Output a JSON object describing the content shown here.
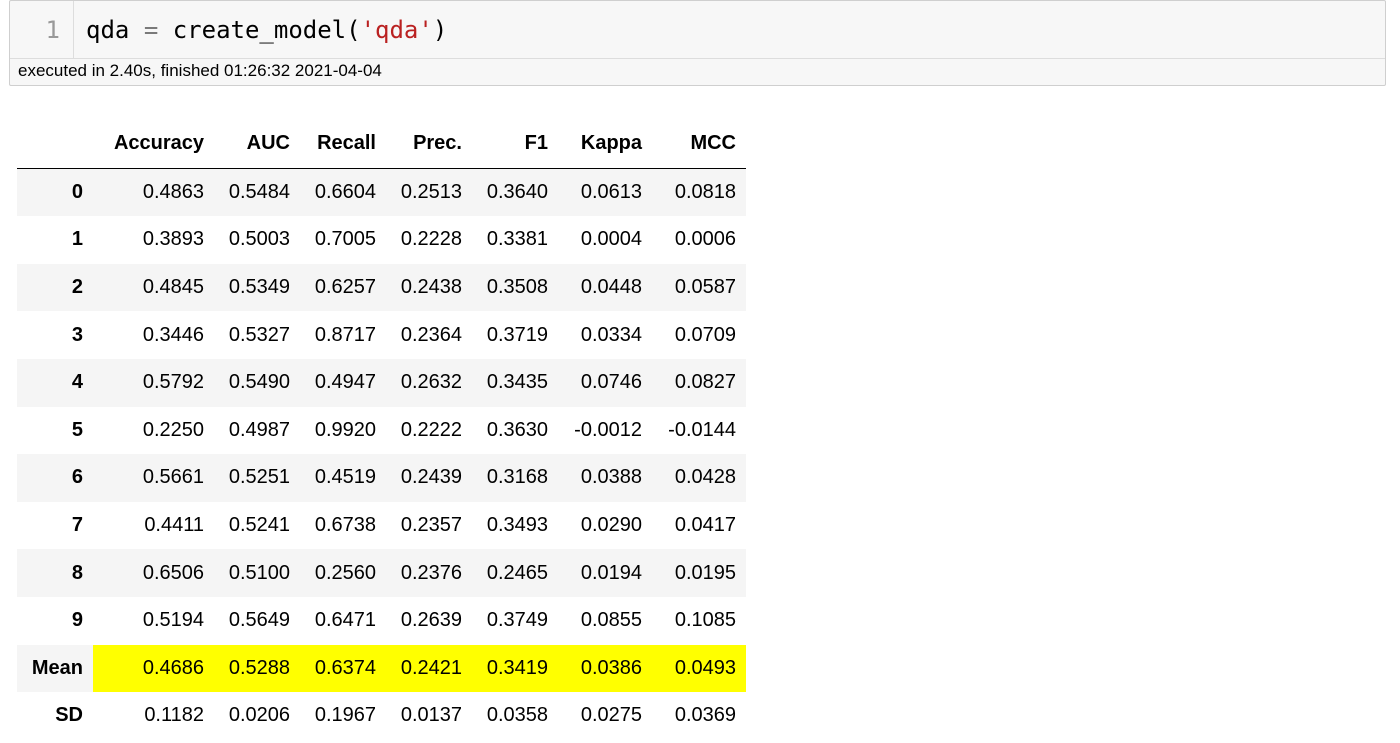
{
  "cell": {
    "line_number": "1",
    "code": {
      "var": "qda",
      "op": "=",
      "func": "create_model(",
      "str": "'qda'",
      "close": ")"
    },
    "status": "executed in 2.40s, finished 01:26:32 2021-04-04"
  },
  "table": {
    "columns": [
      "Accuracy",
      "AUC",
      "Recall",
      "Prec.",
      "F1",
      "Kappa",
      "MCC"
    ],
    "rows": [
      {
        "index": "0",
        "values": [
          "0.4863",
          "0.5484",
          "0.6604",
          "0.2513",
          "0.3640",
          "0.0613",
          "0.0818"
        ]
      },
      {
        "index": "1",
        "values": [
          "0.3893",
          "0.5003",
          "0.7005",
          "0.2228",
          "0.3381",
          "0.0004",
          "0.0006"
        ]
      },
      {
        "index": "2",
        "values": [
          "0.4845",
          "0.5349",
          "0.6257",
          "0.2438",
          "0.3508",
          "0.0448",
          "0.0587"
        ]
      },
      {
        "index": "3",
        "values": [
          "0.3446",
          "0.5327",
          "0.8717",
          "0.2364",
          "0.3719",
          "0.0334",
          "0.0709"
        ]
      },
      {
        "index": "4",
        "values": [
          "0.5792",
          "0.5490",
          "0.4947",
          "0.2632",
          "0.3435",
          "0.0746",
          "0.0827"
        ]
      },
      {
        "index": "5",
        "values": [
          "0.2250",
          "0.4987",
          "0.9920",
          "0.2222",
          "0.3630",
          "-0.0012",
          "-0.0144"
        ]
      },
      {
        "index": "6",
        "values": [
          "0.5661",
          "0.5251",
          "0.4519",
          "0.2439",
          "0.3168",
          "0.0388",
          "0.0428"
        ]
      },
      {
        "index": "7",
        "values": [
          "0.4411",
          "0.5241",
          "0.6738",
          "0.2357",
          "0.3493",
          "0.0290",
          "0.0417"
        ]
      },
      {
        "index": "8",
        "values": [
          "0.6506",
          "0.5100",
          "0.2560",
          "0.2376",
          "0.2465",
          "0.0194",
          "0.0195"
        ]
      },
      {
        "index": "9",
        "values": [
          "0.5194",
          "0.5649",
          "0.6471",
          "0.2639",
          "0.3749",
          "0.0855",
          "0.1085"
        ]
      },
      {
        "index": "Mean",
        "values": [
          "0.4686",
          "0.5288",
          "0.6374",
          "0.2421",
          "0.3419",
          "0.0386",
          "0.0493"
        ],
        "highlight": true
      },
      {
        "index": "SD",
        "values": [
          "0.1182",
          "0.0206",
          "0.1967",
          "0.0137",
          "0.0358",
          "0.0275",
          "0.0369"
        ]
      }
    ]
  },
  "colors": {
    "highlight": "#ffff00",
    "string": "#ba2121",
    "striped_row": "#f5f5f5",
    "cell_background": "#f7f7f7"
  }
}
